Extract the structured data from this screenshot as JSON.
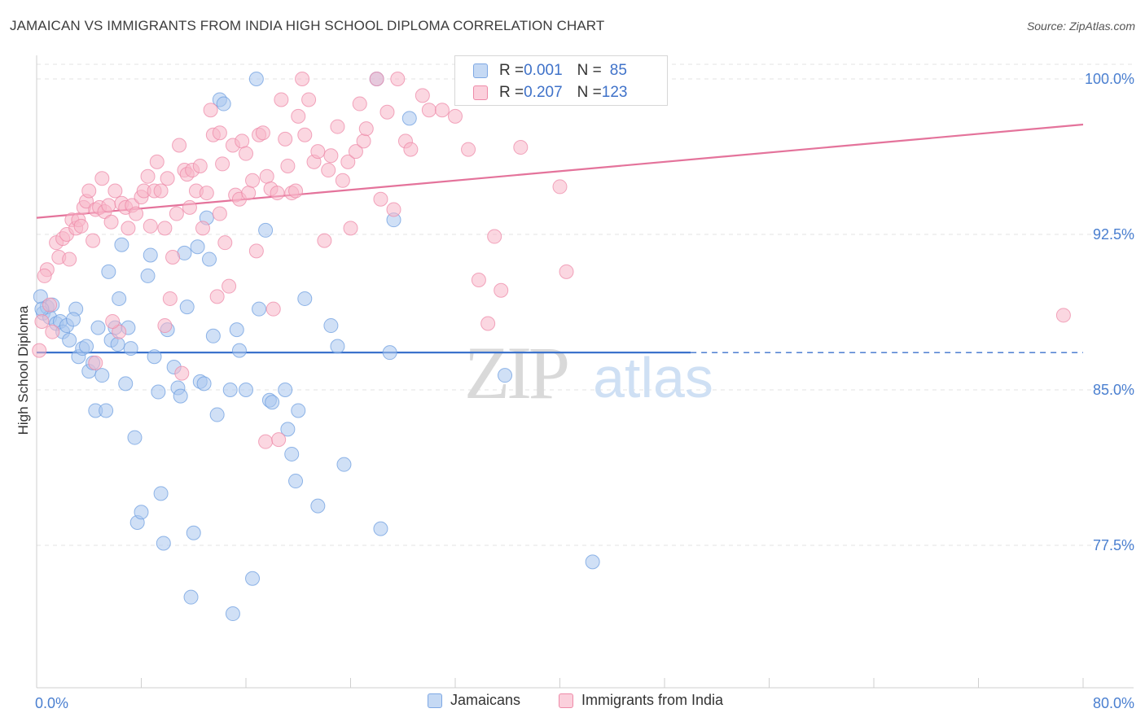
{
  "header": {
    "title": "JAMAICAN VS IMMIGRANTS FROM INDIA HIGH SCHOOL DIPLOMA CORRELATION CHART",
    "source": "Source: ZipAtlas.com"
  },
  "watermark": {
    "zip": "ZIP",
    "atlas": "atlas"
  },
  "stats_legend": {
    "rows": [
      {
        "r_label": "R = ",
        "r_value": "0.001",
        "n_label": "N = ",
        "n_value": "85",
        "color": "#a9c6ee"
      },
      {
        "r_label": "R = ",
        "r_value": "0.207",
        "n_label": "N = ",
        "n_value": "123",
        "color": "#f7b6c8"
      }
    ]
  },
  "bottom_legend": {
    "items": [
      {
        "label": "Jamaicans",
        "color": "#a9c6ee"
      },
      {
        "label": "Immigrants from India",
        "color": "#f7b6c8"
      }
    ]
  },
  "chart_data": {
    "type": "scatter",
    "title": "JAMAICAN VS IMMIGRANTS FROM INDIA HIGH SCHOOL DIPLOMA CORRELATION CHART",
    "xlabel": "",
    "ylabel": "High School Diploma",
    "xlim": [
      0,
      80
    ],
    "ylim": [
      70.0,
      101.5
    ],
    "x_tick_labels": [
      {
        "value": 0,
        "label": "0.0%"
      },
      {
        "value": 80,
        "label": "80.0%"
      }
    ],
    "y_tick_labels": [
      {
        "value": 100.0,
        "label": "100.0%"
      },
      {
        "value": 92.5,
        "label": "92.5%"
      },
      {
        "value": 85.0,
        "label": "85.0%"
      },
      {
        "value": 77.5,
        "label": "77.5%"
      }
    ],
    "x_minor_ticks": [
      0,
      8,
      16,
      24,
      32,
      40,
      48,
      56,
      64,
      72,
      80
    ],
    "grid": true,
    "series": [
      {
        "name": "Jamaicans",
        "color": "#6f9fe0",
        "fill": "#a9c6ee",
        "trend": {
          "x": [
            0,
            50
          ],
          "y": [
            86.8,
            86.8
          ],
          "dashed_extension_to": 80
        },
        "points": [
          [
            0.3,
            89.5
          ],
          [
            0.5,
            88.7
          ],
          [
            0.8,
            89.0
          ],
          [
            1.0,
            88.5
          ],
          [
            1.2,
            89.1
          ],
          [
            1.5,
            88.2
          ],
          [
            1.8,
            88.3
          ],
          [
            2.0,
            87.8
          ],
          [
            2.3,
            88.1
          ],
          [
            2.5,
            87.4
          ],
          [
            3.0,
            88.9
          ],
          [
            3.2,
            86.6
          ],
          [
            3.5,
            87.0
          ],
          [
            3.8,
            87.1
          ],
          [
            4.0,
            85.9
          ],
          [
            4.3,
            86.3
          ],
          [
            4.5,
            84.0
          ],
          [
            4.7,
            88.0
          ],
          [
            5.0,
            85.7
          ],
          [
            5.3,
            84.0
          ],
          [
            5.5,
            90.7
          ],
          [
            5.7,
            87.4
          ],
          [
            6.0,
            88.0
          ],
          [
            6.3,
            89.4
          ],
          [
            6.5,
            92.0
          ],
          [
            6.8,
            85.3
          ],
          [
            7.0,
            88.0
          ],
          [
            7.2,
            87.0
          ],
          [
            7.5,
            82.7
          ],
          [
            7.7,
            78.6
          ],
          [
            8.0,
            79.1
          ],
          [
            8.5,
            90.5
          ],
          [
            8.7,
            91.5
          ],
          [
            9.0,
            86.6
          ],
          [
            9.3,
            84.9
          ],
          [
            9.5,
            80.0
          ],
          [
            9.7,
            77.6
          ],
          [
            10.0,
            87.9
          ],
          [
            10.5,
            86.1
          ],
          [
            10.8,
            85.1
          ],
          [
            11.0,
            84.7
          ],
          [
            11.3,
            91.6
          ],
          [
            11.5,
            89.0
          ],
          [
            11.8,
            75.0
          ],
          [
            12.0,
            78.1
          ],
          [
            12.3,
            91.9
          ],
          [
            12.5,
            85.4
          ],
          [
            12.8,
            85.3
          ],
          [
            13.0,
            93.3
          ],
          [
            13.2,
            91.3
          ],
          [
            13.5,
            87.6
          ],
          [
            13.8,
            83.8
          ],
          [
            14.0,
            99.0
          ],
          [
            14.3,
            98.8
          ],
          [
            14.8,
            85.0
          ],
          [
            15.0,
            74.2
          ],
          [
            15.3,
            87.9
          ],
          [
            15.5,
            86.9
          ],
          [
            16.0,
            85.0
          ],
          [
            16.5,
            75.9
          ],
          [
            16.8,
            100.0
          ],
          [
            17.0,
            88.9
          ],
          [
            17.5,
            92.7
          ],
          [
            17.8,
            84.5
          ],
          [
            18.0,
            84.4
          ],
          [
            19.0,
            85.0
          ],
          [
            19.2,
            83.1
          ],
          [
            19.5,
            81.9
          ],
          [
            19.8,
            80.6
          ],
          [
            20.0,
            84.0
          ],
          [
            20.5,
            89.4
          ],
          [
            21.5,
            79.4
          ],
          [
            22.5,
            88.1
          ],
          [
            23.0,
            87.1
          ],
          [
            23.5,
            81.4
          ],
          [
            26.0,
            100.0
          ],
          [
            26.3,
            78.3
          ],
          [
            27.0,
            86.8
          ],
          [
            27.3,
            93.2
          ],
          [
            28.5,
            98.1
          ],
          [
            35.8,
            85.7
          ],
          [
            42.5,
            76.7
          ],
          [
            0.4,
            88.9
          ],
          [
            2.8,
            88.4
          ],
          [
            6.2,
            87.2
          ]
        ]
      },
      {
        "name": "Immigrants from India",
        "color": "#ee8aa8",
        "fill": "#f7b6c8",
        "trend": {
          "x": [
            0,
            80
          ],
          "y": [
            93.3,
            97.8
          ]
        },
        "points": [
          [
            0.2,
            86.9
          ],
          [
            0.4,
            88.3
          ],
          [
            0.8,
            90.8
          ],
          [
            1.2,
            87.8
          ],
          [
            1.5,
            92.1
          ],
          [
            1.7,
            91.4
          ],
          [
            2.0,
            92.3
          ],
          [
            2.3,
            92.5
          ],
          [
            2.5,
            91.3
          ],
          [
            2.7,
            93.2
          ],
          [
            3.0,
            92.8
          ],
          [
            3.2,
            93.2
          ],
          [
            3.4,
            92.9
          ],
          [
            3.6,
            93.8
          ],
          [
            3.8,
            94.1
          ],
          [
            4.0,
            94.6
          ],
          [
            4.3,
            92.2
          ],
          [
            4.5,
            93.7
          ],
          [
            4.8,
            93.8
          ],
          [
            5.0,
            95.2
          ],
          [
            5.2,
            93.6
          ],
          [
            5.5,
            93.9
          ],
          [
            5.7,
            93.1
          ],
          [
            6.0,
            94.6
          ],
          [
            6.3,
            87.8
          ],
          [
            6.5,
            94.0
          ],
          [
            6.8,
            93.8
          ],
          [
            7.0,
            92.8
          ],
          [
            7.3,
            93.9
          ],
          [
            7.6,
            93.5
          ],
          [
            8.0,
            94.3
          ],
          [
            8.2,
            94.6
          ],
          [
            8.5,
            95.3
          ],
          [
            8.7,
            92.9
          ],
          [
            9.0,
            94.6
          ],
          [
            9.2,
            96.0
          ],
          [
            9.5,
            94.6
          ],
          [
            9.8,
            92.8
          ],
          [
            10.0,
            95.2
          ],
          [
            10.2,
            89.4
          ],
          [
            10.4,
            91.4
          ],
          [
            10.7,
            93.5
          ],
          [
            10.9,
            96.8
          ],
          [
            11.1,
            85.8
          ],
          [
            11.3,
            95.6
          ],
          [
            11.5,
            95.4
          ],
          [
            11.7,
            93.8
          ],
          [
            11.9,
            95.6
          ],
          [
            12.2,
            94.6
          ],
          [
            12.5,
            95.8
          ],
          [
            12.7,
            92.8
          ],
          [
            13.0,
            94.5
          ],
          [
            13.3,
            98.5
          ],
          [
            13.5,
            97.3
          ],
          [
            13.8,
            89.5
          ],
          [
            14.0,
            97.4
          ],
          [
            14.2,
            95.9
          ],
          [
            14.4,
            92.1
          ],
          [
            14.7,
            90.0
          ],
          [
            15.0,
            96.8
          ],
          [
            15.2,
            94.4
          ],
          [
            15.5,
            94.2
          ],
          [
            15.7,
            97.0
          ],
          [
            16.0,
            96.4
          ],
          [
            16.2,
            94.5
          ],
          [
            16.5,
            95.1
          ],
          [
            16.8,
            91.7
          ],
          [
            17.0,
            97.3
          ],
          [
            17.3,
            97.4
          ],
          [
            17.6,
            95.3
          ],
          [
            17.9,
            94.7
          ],
          [
            18.1,
            88.9
          ],
          [
            18.4,
            94.5
          ],
          [
            18.7,
            99.0
          ],
          [
            19.0,
            97.1
          ],
          [
            19.2,
            95.8
          ],
          [
            19.5,
            94.5
          ],
          [
            19.8,
            94.6
          ],
          [
            20.0,
            98.2
          ],
          [
            20.3,
            100.0
          ],
          [
            20.5,
            97.3
          ],
          [
            20.8,
            99.0
          ],
          [
            21.2,
            96.0
          ],
          [
            21.5,
            96.5
          ],
          [
            22.0,
            92.2
          ],
          [
            22.3,
            95.6
          ],
          [
            22.5,
            96.3
          ],
          [
            23.0,
            97.7
          ],
          [
            23.4,
            95.1
          ],
          [
            23.8,
            96.0
          ],
          [
            24.0,
            92.8
          ],
          [
            24.4,
            96.5
          ],
          [
            24.7,
            98.8
          ],
          [
            25.0,
            97.0
          ],
          [
            25.2,
            97.6
          ],
          [
            26.0,
            100.0
          ],
          [
            26.3,
            94.2
          ],
          [
            26.8,
            98.4
          ],
          [
            27.3,
            93.7
          ],
          [
            27.6,
            100.0
          ],
          [
            28.2,
            97.0
          ],
          [
            28.6,
            96.6
          ],
          [
            29.5,
            99.2
          ],
          [
            30.0,
            98.5
          ],
          [
            31.0,
            98.5
          ],
          [
            32.0,
            98.2
          ],
          [
            33.0,
            96.6
          ],
          [
            33.8,
            90.3
          ],
          [
            34.5,
            88.2
          ],
          [
            35.0,
            92.4
          ],
          [
            35.5,
            89.8
          ],
          [
            37.0,
            96.7
          ],
          [
            40.0,
            94.8
          ],
          [
            40.5,
            90.7
          ],
          [
            78.5,
            88.6
          ],
          [
            17.5,
            82.5
          ],
          [
            18.5,
            82.6
          ],
          [
            9.8,
            88.1
          ],
          [
            4.5,
            86.3
          ],
          [
            14.0,
            93.5
          ],
          [
            5.8,
            88.3
          ],
          [
            0.6,
            90.5
          ],
          [
            1.0,
            89.1
          ]
        ]
      }
    ]
  }
}
